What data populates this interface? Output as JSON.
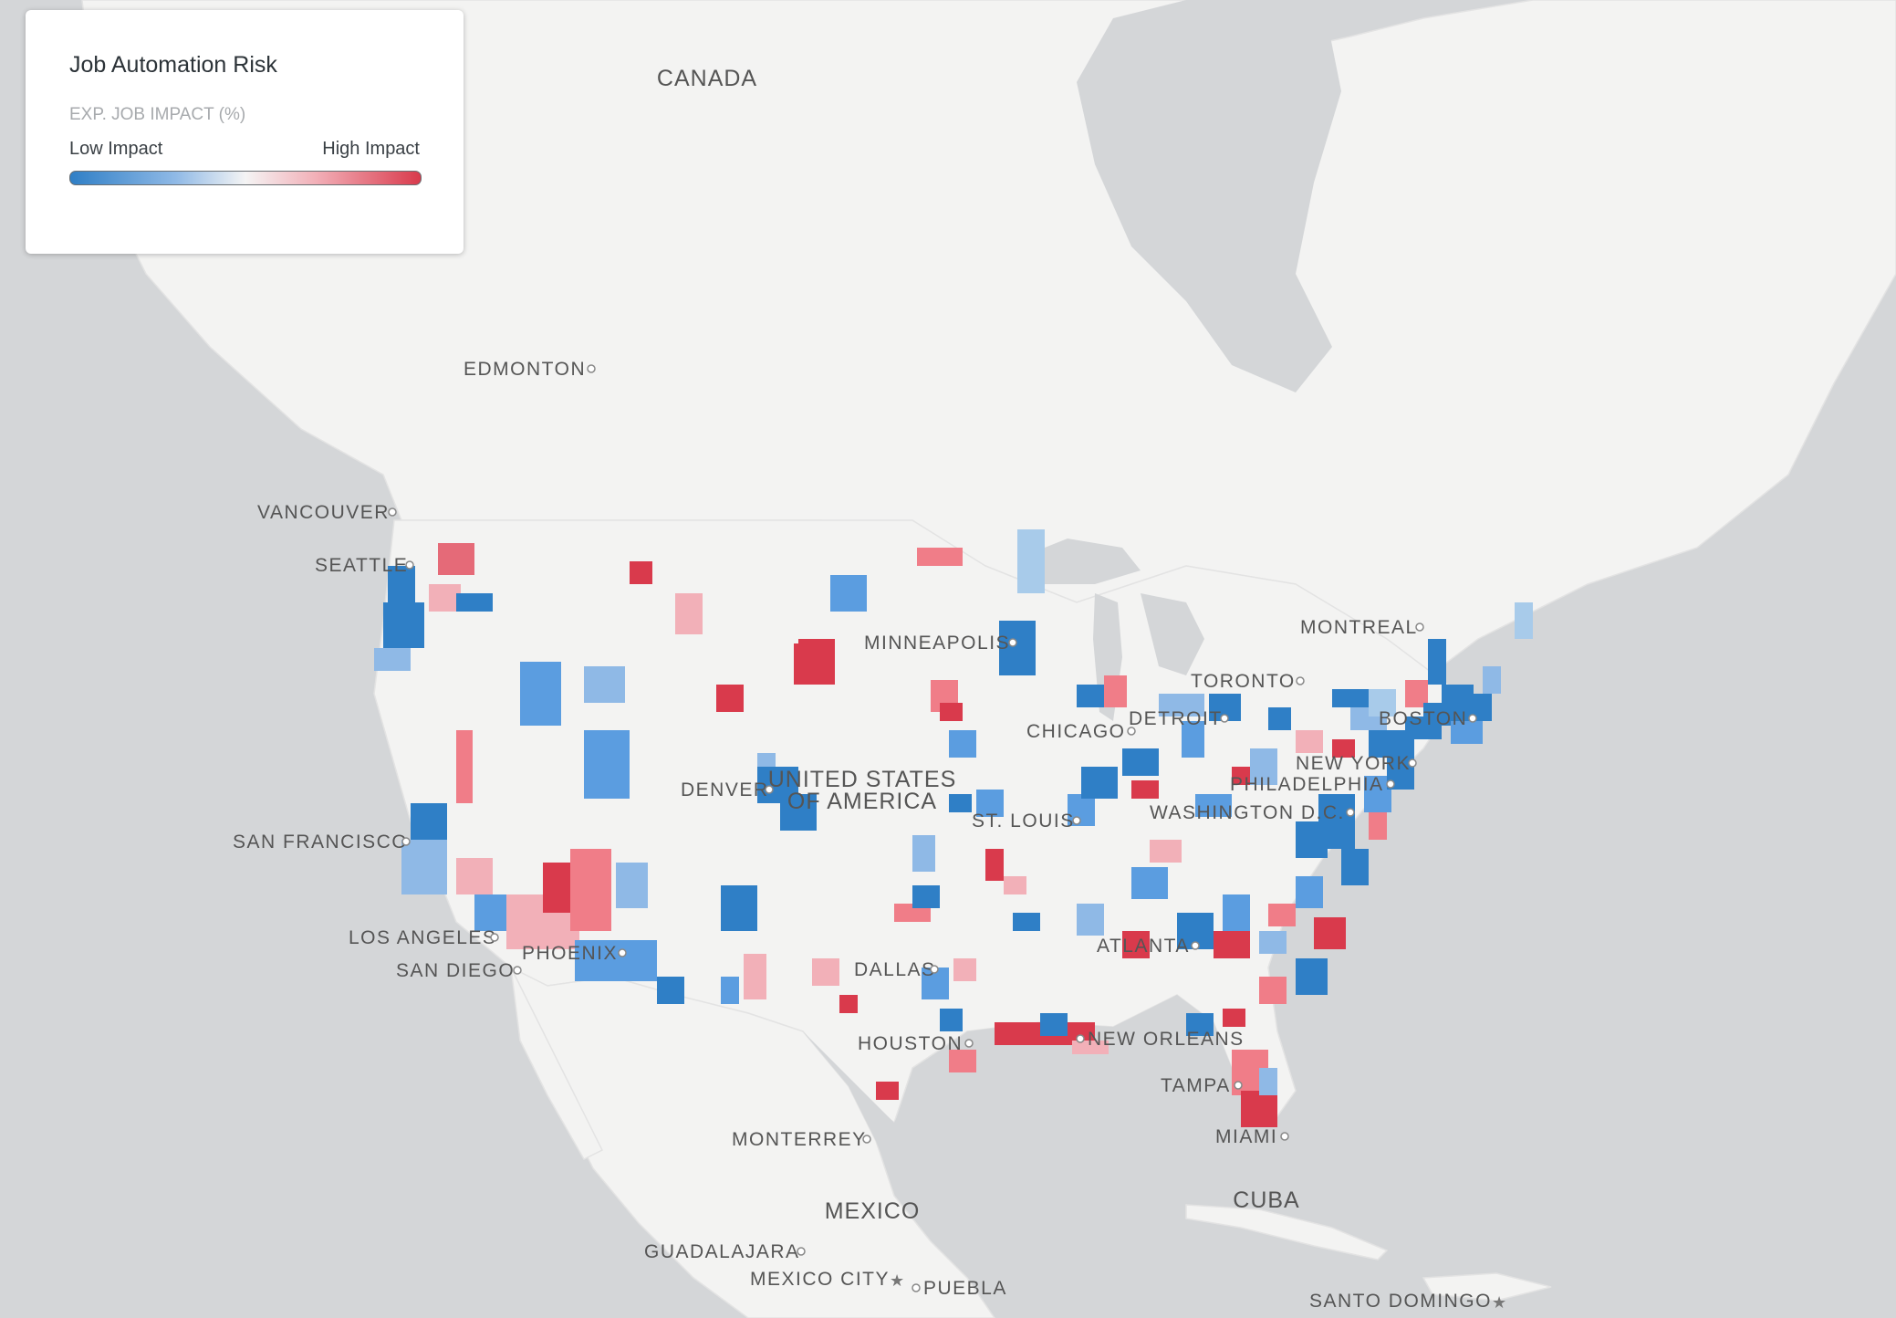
{
  "legend": {
    "title": "Job Automation Risk",
    "subtitle": "EXP. JOB IMPACT (%)",
    "low_label": "Low Impact",
    "high_label": "High Impact",
    "colors": {
      "low": "#2f7fc6",
      "mid": "#f4f4f4",
      "high": "#d93a4c"
    }
  },
  "countries": [
    "CANADA",
    "UNITED STATES",
    "OF AMERICA",
    "MEXICO",
    "CUBA"
  ],
  "cities": [
    "EDMONTON",
    "VANCOUVER",
    "SEATTLE",
    "MINNEAPOLIS",
    "MONTREAL",
    "TORONTO",
    "DETROIT",
    "BOSTON",
    "CHICAGO",
    "NEW YORK",
    "PHILADELPHIA",
    "DENVER",
    "WASHINGTON D.C.",
    "ST. LOUIS",
    "SAN FRANCISCO",
    "LOS ANGELES",
    "PHOENIX",
    "SAN DIEGO",
    "ATLANTA",
    "DALLAS",
    "HOUSTON",
    "NEW ORLEANS",
    "TAMPA",
    "MIAMI",
    "MONTERREY",
    "GUADALAJARA",
    "MEXICO CITY",
    "PUEBLA",
    "SANTO DOMINGO"
  ]
}
